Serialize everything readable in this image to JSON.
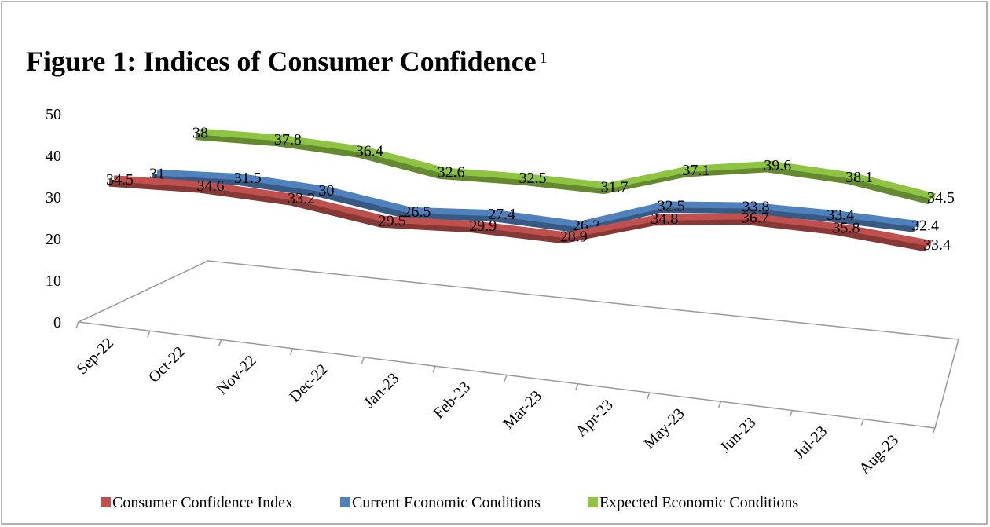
{
  "chart_data": {
    "type": "line3d",
    "title": "Figure 1: Indices of Consumer Confidence",
    "title_note": "1",
    "categories": [
      "Sep-22",
      "Oct-22",
      "Nov-22",
      "Dec-22",
      "Jan-23",
      "Feb-23",
      "Mar-23",
      "Apr-23",
      "May-23",
      "Jun-23",
      "Jul-23",
      "Aug-23"
    ],
    "ylim": [
      0,
      50
    ],
    "yticks": [
      0,
      10,
      20,
      30,
      40,
      50
    ],
    "series": [
      {
        "name": "Consumer Confidence Index",
        "color": "#c0504d",
        "values": [
          null,
          null,
          34.5,
          34.6,
          33.2,
          29.5,
          29.9,
          28.9,
          34.8,
          36.7,
          35.8,
          33.4
        ]
      },
      {
        "name": "Current Economic Conditions",
        "color": "#4f81bd",
        "values": [
          null,
          null,
          31.0,
          31.5,
          30.0,
          26.5,
          27.4,
          26.2,
          32.5,
          33.8,
          33.4,
          32.4
        ]
      },
      {
        "name": "Expected Economic Conditions",
        "color": "#8fc442",
        "values": [
          null,
          null,
          38.0,
          37.8,
          36.4,
          32.6,
          32.5,
          31.7,
          37.1,
          39.6,
          38.1,
          34.5
        ]
      }
    ]
  }
}
